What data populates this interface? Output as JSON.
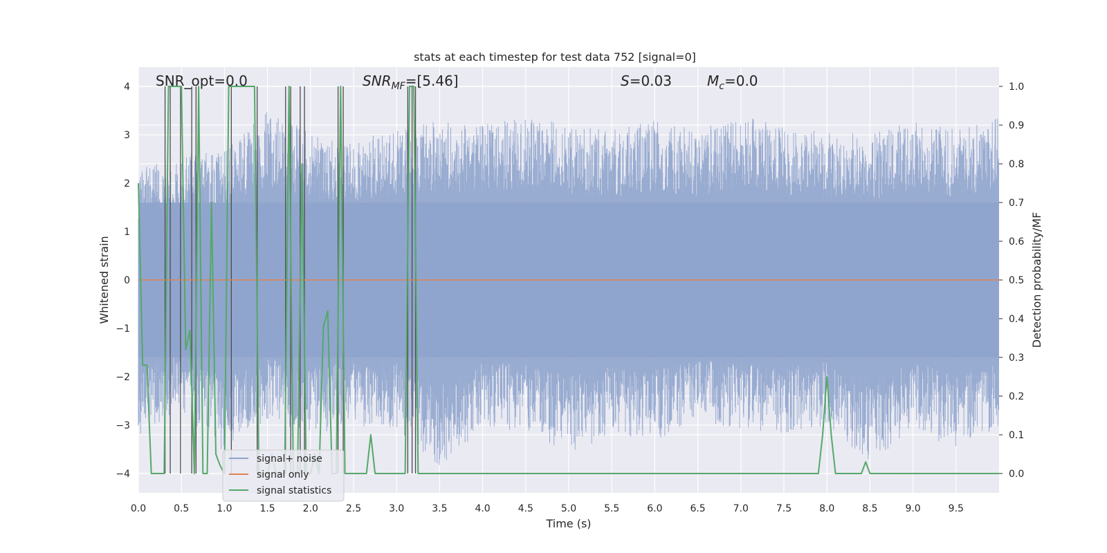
{
  "chart_data": {
    "type": "line",
    "title": "stats at each timestep for test data 752 [signal=0]",
    "xlabel": "Time (s)",
    "ylabel_left": "Whitened strain",
    "ylabel_right": "Detection probability/MF",
    "xlim": [
      0.0,
      10.0
    ],
    "ylim_left": [
      -4.4,
      4.4
    ],
    "ylim_right": [
      -0.05,
      1.05
    ],
    "xticks": [
      0.0,
      0.5,
      1.0,
      1.5,
      2.0,
      2.5,
      3.0,
      3.5,
      4.0,
      4.5,
      5.0,
      5.5,
      6.0,
      6.5,
      7.0,
      7.5,
      8.0,
      8.5,
      9.0,
      9.5
    ],
    "xtick_labels": [
      "0.0",
      "0.5",
      "1.0",
      "1.5",
      "2.0",
      "2.5",
      "3.0",
      "3.5",
      "4.0",
      "4.5",
      "5.0",
      "5.5",
      "6.0",
      "6.5",
      "7.0",
      "7.5",
      "8.0",
      "8.5",
      "9.0",
      "9.5"
    ],
    "yticks_left": [
      -4,
      -3,
      -2,
      -1,
      0,
      1,
      2,
      3,
      4
    ],
    "ytick_labels_left": [
      "−4",
      "−3",
      "−2",
      "−1",
      "0",
      "1",
      "2",
      "3",
      "4"
    ],
    "yticks_right": [
      0.0,
      0.1,
      0.2,
      0.3,
      0.4,
      0.5,
      0.6,
      0.7,
      0.8,
      0.9,
      1.0
    ],
    "ytick_labels_right": [
      "0.0",
      "0.1",
      "0.2",
      "0.3",
      "0.4",
      "0.5",
      "0.6",
      "0.7",
      "0.8",
      "0.9",
      "1.0"
    ],
    "grid": true,
    "legend_position": "lower-left",
    "annotations": {
      "snr_opt": "SNR_opt=0.0",
      "snr_mf_name": "SNR",
      "snr_mf_sub": "MF",
      "snr_mf_value": "=[5.46]",
      "s_name": "S",
      "s_value": "=0.03",
      "mc_name": "M",
      "mc_sub": "c",
      "mc_value": "=0.0"
    },
    "noise_envelope": {
      "x": [
        0.0,
        0.5,
        1.0,
        1.5,
        2.0,
        2.5,
        3.0,
        3.5,
        4.0,
        4.5,
        5.0,
        5.5,
        6.0,
        6.5,
        7.0,
        7.5,
        8.0,
        8.5,
        9.0,
        9.5,
        10.0
      ],
      "upper": [
        2.3,
        2.6,
        2.7,
        3.5,
        3.1,
        2.8,
        3.2,
        3.3,
        3.2,
        3.4,
        3.2,
        3.1,
        3.3,
        3.1,
        3.4,
        3.2,
        3.1,
        3.0,
        3.3,
        3.1,
        3.4
      ],
      "lower": [
        -3.2,
        -2.7,
        -3.6,
        -2.9,
        -3.2,
        -3.0,
        -3.1,
        -3.9,
        -3.1,
        -3.1,
        -3.6,
        -3.2,
        -3.3,
        -3.0,
        -3.1,
        -3.2,
        -3.0,
        -3.8,
        -3.1,
        -3.5,
        -3.1
      ]
    },
    "vertical_markers": [
      0.31,
      0.37,
      0.49,
      0.62,
      0.67,
      1.08,
      1.38,
      1.71,
      1.77,
      1.88,
      1.93,
      2.32,
      2.38,
      3.13,
      3.18,
      3.22
    ],
    "series": [
      {
        "name": "signal+ noise",
        "color": "#8fa4cc",
        "style": "noise"
      },
      {
        "name": "signal only",
        "color": "#dd8452",
        "x": [
          0.0,
          10.0
        ],
        "y": [
          0.0,
          0.0
        ]
      },
      {
        "name": "signal statistics",
        "color": "#55a868",
        "axis": "right",
        "x": [
          0.0,
          0.05,
          0.1,
          0.15,
          0.2,
          0.25,
          0.3,
          0.35,
          0.4,
          0.45,
          0.5,
          0.55,
          0.6,
          0.65,
          0.7,
          0.75,
          0.8,
          0.85,
          0.9,
          0.95,
          1.0,
          1.05,
          1.1,
          1.15,
          1.2,
          1.25,
          1.3,
          1.35,
          1.4,
          1.45,
          1.5,
          1.55,
          1.6,
          1.65,
          1.7,
          1.75,
          1.8,
          1.85,
          1.9,
          1.95,
          2.0,
          2.05,
          2.1,
          2.15,
          2.2,
          2.25,
          2.3,
          2.35,
          2.4,
          2.45,
          2.5,
          2.55,
          2.6,
          2.65,
          2.7,
          2.75,
          2.8,
          2.85,
          2.9,
          2.95,
          3.0,
          3.05,
          3.1,
          3.15,
          3.2,
          3.25,
          3.3,
          3.35,
          3.4,
          4.0,
          5.0,
          6.0,
          7.0,
          7.5,
          7.9,
          7.95,
          8.0,
          8.05,
          8.1,
          8.15,
          8.2,
          8.25,
          8.3,
          8.35,
          8.4,
          8.45,
          8.5,
          8.55,
          8.6,
          9.0,
          9.5,
          10.0
        ],
        "y": [
          0.75,
          0.28,
          0.28,
          0.0,
          0.0,
          0.0,
          0.0,
          1.0,
          1.0,
          1.0,
          1.0,
          0.32,
          0.37,
          0.0,
          1.0,
          0.0,
          0.0,
          0.7,
          0.05,
          0.02,
          0.0,
          1.0,
          1.0,
          1.0,
          1.0,
          1.0,
          1.0,
          1.0,
          0.0,
          0.0,
          0.0,
          0.05,
          0.0,
          0.0,
          0.0,
          1.0,
          0.0,
          0.0,
          0.8,
          0.0,
          0.0,
          0.05,
          0.0,
          0.38,
          0.42,
          0.0,
          0.0,
          1.0,
          0.0,
          0.0,
          0.0,
          0.0,
          0.0,
          0.0,
          0.1,
          0.0,
          0.0,
          0.0,
          0.0,
          0.0,
          0.0,
          0.0,
          0.0,
          1.0,
          1.0,
          0.0,
          0.0,
          0.0,
          0.0,
          0.0,
          0.0,
          0.0,
          0.0,
          0.0,
          0.0,
          0.1,
          0.25,
          0.1,
          0.0,
          0.0,
          0.0,
          0.0,
          0.0,
          0.0,
          0.0,
          0.03,
          0.0,
          0.0,
          0.0,
          0.0,
          0.0,
          0.0
        ]
      }
    ]
  }
}
